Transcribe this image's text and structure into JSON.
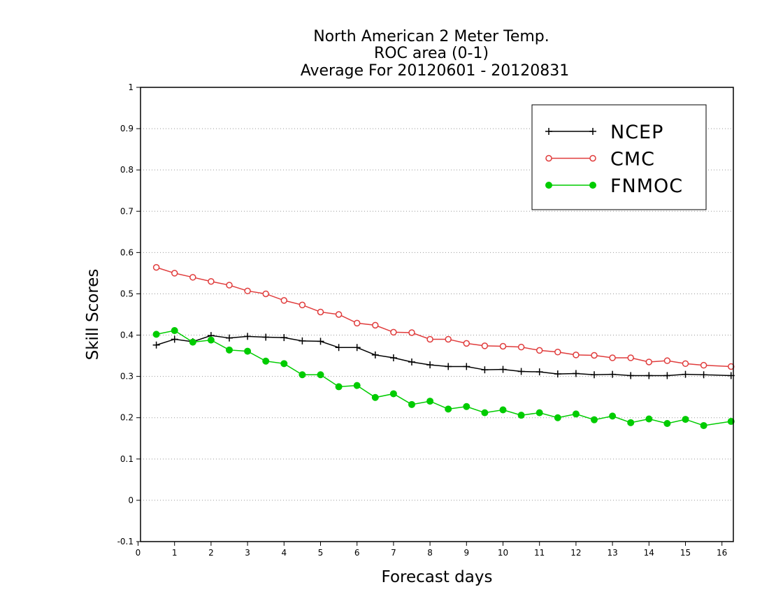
{
  "chart_data": {
    "type": "line",
    "title_lines": [
      "North American 2 Meter Temp.",
      "ROC area (0-1)",
      "Average For 20120601 - 20120831"
    ],
    "xlabel": "Forecast days",
    "ylabel": "Skill Scores",
    "xlim": [
      0,
      16.25
    ],
    "ylim": [
      -0.1,
      1
    ],
    "xticks": [
      0,
      1,
      2,
      3,
      4,
      5,
      6,
      7,
      8,
      9,
      10,
      11,
      12,
      13,
      14,
      15,
      16
    ],
    "yticks": [
      -0.1,
      0,
      0.1,
      0.2,
      0.3,
      0.4,
      0.5,
      0.6,
      0.7,
      0.8,
      0.9,
      1
    ],
    "ytick_labels": [
      "-0.1",
      "0",
      "0.1",
      "0.2",
      "0.3",
      "0.4",
      "0.5",
      "0.6",
      "0.7",
      "0.8",
      "0.9",
      "1"
    ],
    "grid": "horizontal dotted",
    "legend_position": "top-right",
    "x": [
      0.5,
      1,
      1.5,
      2,
      2.5,
      3,
      3.5,
      4,
      4.5,
      5,
      5.5,
      6,
      6.5,
      7,
      7.5,
      8,
      8.5,
      9,
      9.5,
      10,
      10.5,
      11,
      11.5,
      12,
      12.5,
      13,
      13.5,
      14,
      14.5,
      15,
      15.5,
      16.25
    ],
    "series": [
      {
        "name": "NCEP",
        "color": "#000000",
        "marker": "plus",
        "values": [
          0.376,
          0.39,
          0.384,
          0.399,
          0.393,
          0.397,
          0.395,
          0.394,
          0.386,
          0.385,
          0.37,
          0.37,
          0.352,
          0.345,
          0.335,
          0.328,
          0.324,
          0.324,
          0.316,
          0.317,
          0.312,
          0.311,
          0.306,
          0.307,
          0.304,
          0.305,
          0.302,
          0.302,
          0.302,
          0.305,
          0.304,
          0.302
        ]
      },
      {
        "name": "CMC",
        "color": "#e03c3c",
        "marker": "open-circle",
        "values": [
          0.564,
          0.55,
          0.54,
          0.53,
          0.521,
          0.507,
          0.5,
          0.484,
          0.473,
          0.456,
          0.45,
          0.429,
          0.424,
          0.407,
          0.406,
          0.39,
          0.39,
          0.38,
          0.374,
          0.373,
          0.371,
          0.363,
          0.359,
          0.352,
          0.351,
          0.345,
          0.345,
          0.335,
          0.338,
          0.331,
          0.327,
          0.324
        ]
      },
      {
        "name": "FNMOC",
        "color": "#00cc00",
        "marker": "filled-circle",
        "values": [
          0.402,
          0.411,
          0.383,
          0.388,
          0.364,
          0.361,
          0.337,
          0.331,
          0.304,
          0.304,
          0.275,
          0.278,
          0.249,
          0.258,
          0.232,
          0.24,
          0.221,
          0.227,
          0.212,
          0.219,
          0.206,
          0.212,
          0.2,
          0.209,
          0.195,
          0.204,
          0.188,
          0.197,
          0.186,
          0.196,
          0.181,
          0.191
        ]
      }
    ]
  }
}
